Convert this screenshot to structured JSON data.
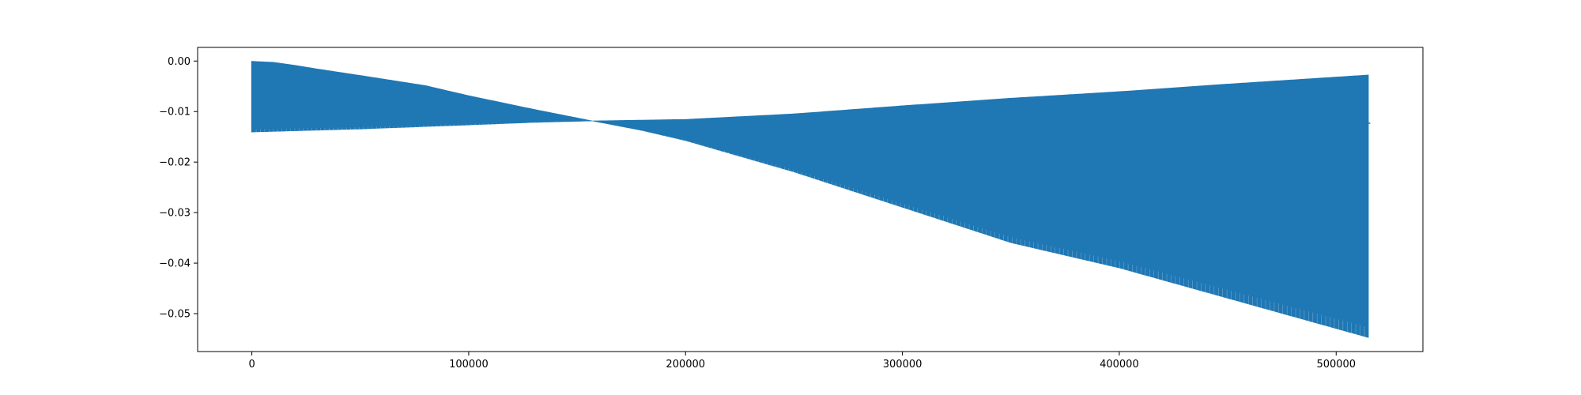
{
  "chart_data": {
    "type": "line",
    "title": "",
    "xlabel": "",
    "ylabel": "",
    "xlim": [
      -25000,
      540000
    ],
    "ylim": [
      -0.0575,
      0.0027
    ],
    "x_ticks": [
      0,
      100000,
      200000,
      300000,
      400000,
      500000
    ],
    "x_tick_labels": [
      "0",
      "100000",
      "200000",
      "300000",
      "400000",
      "500000"
    ],
    "y_ticks": [
      0.0,
      -0.01,
      -0.02,
      -0.03,
      -0.04,
      -0.05
    ],
    "y_tick_labels": [
      "0.00",
      "−0.01",
      "−0.02",
      "−0.03",
      "−0.04",
      "−0.05"
    ],
    "grid": false,
    "legend": "none",
    "series": [
      {
        "color": "#1f77b4",
        "description": "oscillating signal; band between upper and lower envelopes",
        "upper_envelope": {
          "x": [
            0,
            10000,
            20000,
            30000,
            50000,
            80000,
            100000,
            130000,
            157000,
            200000,
            250000,
            300000,
            350000,
            400000,
            450000,
            515000
          ],
          "y": [
            0.0,
            -0.0002,
            -0.0008,
            -0.0015,
            -0.0028,
            -0.0048,
            -0.0068,
            -0.0095,
            -0.0118,
            -0.0115,
            -0.0104,
            -0.0088,
            -0.0073,
            -0.006,
            -0.0045,
            -0.0027
          ]
        },
        "lower_envelope": {
          "x": [
            0,
            50000,
            100000,
            130000,
            157000,
            180000,
            200000,
            250000,
            300000,
            350000,
            400000,
            450000,
            515000
          ],
          "y": [
            -0.0141,
            -0.0135,
            -0.0127,
            -0.0122,
            -0.0119,
            -0.0138,
            -0.0158,
            -0.022,
            -0.029,
            -0.036,
            -0.041,
            -0.047,
            -0.0548
          ]
        },
        "final_value": -0.0123
      }
    ]
  }
}
